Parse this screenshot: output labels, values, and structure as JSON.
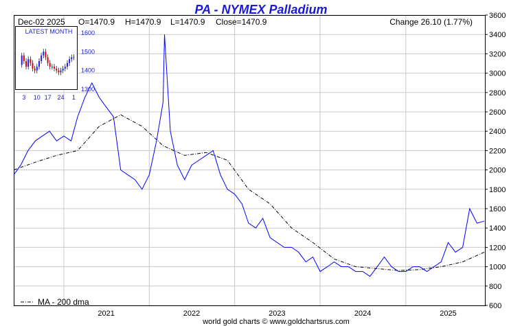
{
  "header": {
    "title": "PA  -  NYMEX Palladium",
    "date": "Dec-02  2025",
    "open": "O=1470.9",
    "high": "H=1470.9",
    "low": "L=1470.9",
    "close": "Close=1470.9",
    "change": "Change 26.10 (1.77%)"
  },
  "footer": {
    "credit": "world gold charts © www.goldchartsrus.com",
    "legend_ma": "MA - 200 dma"
  },
  "colors": {
    "title": "#1a1ad6",
    "price_line": "#0000ff",
    "ma_line": "#000000",
    "grid": "#c8c8c8",
    "inset_up": "#1a1aff",
    "inset_down": "#dd0000"
  },
  "chart_data": [
    {
      "type": "line",
      "title": "PA  -  NYMEX Palladium",
      "ylim": [
        600,
        3600
      ],
      "yticks": [
        600,
        800,
        1000,
        1200,
        1400,
        1600,
        1800,
        2000,
        2200,
        2400,
        2600,
        2800,
        3000,
        3200,
        3400,
        3600
      ],
      "xlim": [
        "2020-06-01",
        "2025-12-05"
      ],
      "xticks": [
        "2021",
        "2022",
        "2023",
        "2024",
        "2025"
      ],
      "grid": true,
      "series": [
        {
          "name": "",
          "x": [
            "2020-06-01",
            "2020-07-01",
            "2020-08-01",
            "2020-09-01",
            "2020-10-01",
            "2020-11-01",
            "2020-12-01",
            "2021-01-01",
            "2021-02-01",
            "2021-03-01",
            "2021-04-01",
            "2021-05-01",
            "2021-06-01",
            "2021-07-01",
            "2021-08-01",
            "2021-09-01",
            "2021-10-01",
            "2021-11-01",
            "2021-12-01",
            "2022-01-01",
            "2022-02-01",
            "2022-03-01",
            "2022-03-07",
            "2022-04-01",
            "2022-05-01",
            "2022-06-01",
            "2022-07-01",
            "2022-08-01",
            "2022-09-01",
            "2022-10-01",
            "2022-11-01",
            "2022-12-01",
            "2023-01-01",
            "2023-02-01",
            "2023-03-01",
            "2023-04-01",
            "2023-05-01",
            "2023-06-01",
            "2023-07-01",
            "2023-08-01",
            "2023-09-01",
            "2023-10-01",
            "2023-11-01",
            "2023-12-01",
            "2024-01-01",
            "2024-02-01",
            "2024-03-01",
            "2024-04-01",
            "2024-05-01",
            "2024-06-01",
            "2024-07-01",
            "2024-08-01",
            "2024-09-01",
            "2024-10-01",
            "2024-11-01",
            "2024-12-01",
            "2025-01-01",
            "2025-02-01",
            "2025-03-01",
            "2025-04-01",
            "2025-05-01",
            "2025-06-01",
            "2025-07-01",
            "2025-08-01",
            "2025-09-01",
            "2025-10-01",
            "2025-11-01",
            "2025-12-02"
          ],
          "values": [
            1950,
            2050,
            2200,
            2300,
            2350,
            2400,
            2300,
            2350,
            2300,
            2550,
            2750,
            2900,
            2750,
            2650,
            2550,
            2000,
            1950,
            1900,
            1800,
            1950,
            2300,
            2700,
            3400,
            2400,
            2050,
            1900,
            2050,
            2100,
            2150,
            2200,
            1950,
            1800,
            1750,
            1650,
            1450,
            1400,
            1500,
            1300,
            1250,
            1200,
            1200,
            1150,
            1050,
            1100,
            950,
            1000,
            1050,
            1000,
            1000,
            950,
            950,
            900,
            1000,
            1100,
            1000,
            950,
            950,
            1000,
            1000,
            950,
            1000,
            1050,
            1250,
            1150,
            1200,
            1600,
            1450,
            1470.9
          ]
        },
        {
          "name": "MA - 200 dma",
          "x": [
            "2020-06-01",
            "2020-09-01",
            "2020-12-01",
            "2021-03-01",
            "2021-06-01",
            "2021-09-01",
            "2021-12-01",
            "2022-03-01",
            "2022-06-01",
            "2022-09-01",
            "2022-12-01",
            "2023-03-01",
            "2023-06-01",
            "2023-09-01",
            "2023-12-01",
            "2024-03-01",
            "2024-06-01",
            "2024-09-01",
            "2024-12-01",
            "2025-03-01",
            "2025-06-01",
            "2025-09-01",
            "2025-12-02"
          ],
          "values": [
            2000,
            2080,
            2150,
            2200,
            2450,
            2570,
            2450,
            2250,
            2150,
            2180,
            2100,
            1800,
            1650,
            1400,
            1250,
            1080,
            1000,
            980,
            960,
            970,
            1000,
            1050,
            1150
          ]
        }
      ]
    },
    {
      "type": "candlestick",
      "title": "LATEST MONTH",
      "ylim": [
        1300,
        1600
      ],
      "yticks": [
        1300,
        1400,
        1500,
        1600
      ],
      "xticks": [
        "3",
        "10",
        "17",
        "24",
        "1"
      ],
      "values": [
        1430,
        1480,
        1450,
        1420,
        1460,
        1440,
        1410,
        1400,
        1420,
        1450,
        1480,
        1500,
        1470,
        1440,
        1420,
        1420,
        1410,
        1400,
        1390,
        1400,
        1410,
        1420,
        1440,
        1460,
        1470,
        1471
      ]
    }
  ]
}
